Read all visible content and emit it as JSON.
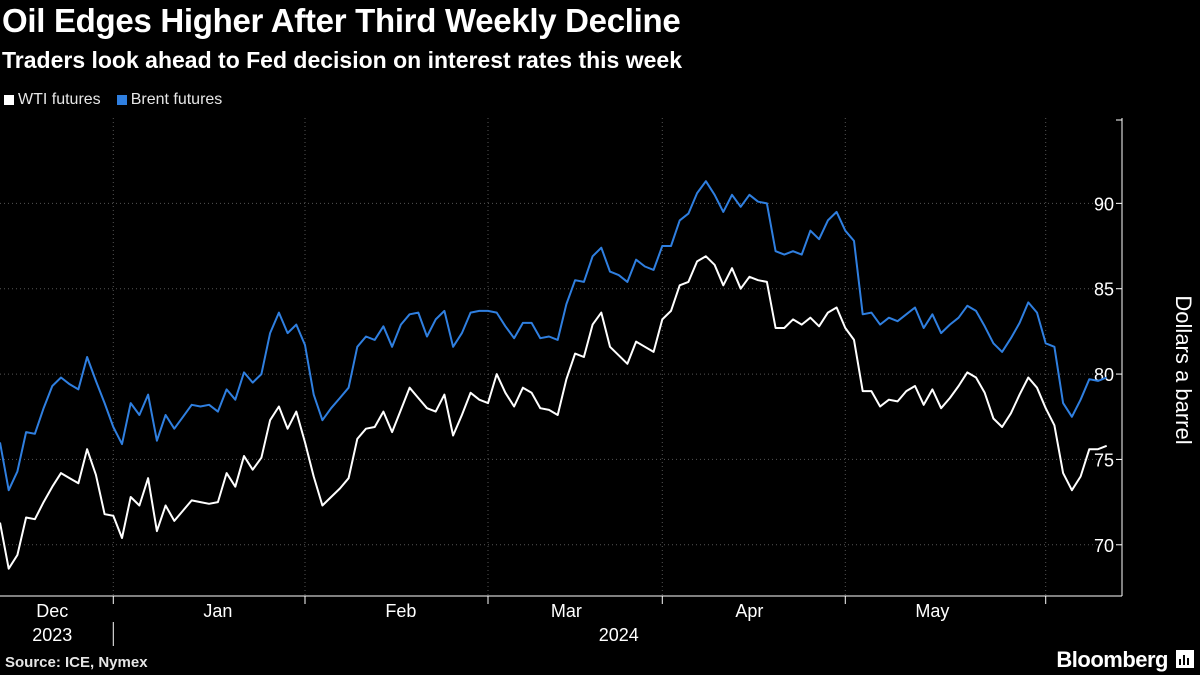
{
  "header": {
    "title": "Oil Edges Higher After Third Weekly Decline",
    "subtitle": "Traders look ahead to Fed decision on interest rates this week"
  },
  "footer": {
    "source": "Source: ICE, Nymex",
    "brand": "Bloomberg"
  },
  "colors": {
    "background": "#000000",
    "wti": "#ffffff",
    "brent": "#2f7fe0",
    "grid": "#555555"
  },
  "chart_data": {
    "type": "line",
    "title": "Oil Edges Higher After Third Weekly Decline",
    "ylabel": "Dollars a barrel",
    "ylim": [
      67,
      95
    ],
    "yticks": [
      70,
      75,
      80,
      85,
      90
    ],
    "grid": true,
    "legend_position": "top-left",
    "x_range": [
      0,
      126
    ],
    "month_ticks": [
      {
        "label": "Dec",
        "pos": 6
      },
      {
        "label": "Jan",
        "pos": 25
      },
      {
        "label": "Feb",
        "pos": 46
      },
      {
        "label": "Mar",
        "pos": 65
      },
      {
        "label": "Apr",
        "pos": 86
      },
      {
        "label": "May",
        "pos": 107
      }
    ],
    "month_boundaries": [
      13,
      35,
      56,
      76,
      97,
      120
    ],
    "year_labels": [
      {
        "label": "2023",
        "pos": 6
      },
      {
        "label": "2024",
        "pos": 71
      }
    ],
    "year_divider": 13,
    "series": [
      {
        "name": "WTI futures",
        "color": "#ffffff",
        "values": [
          71.3,
          68.6,
          69.4,
          71.6,
          71.5,
          72.5,
          73.4,
          74.2,
          73.9,
          73.6,
          75.6,
          74.1,
          71.8,
          71.7,
          70.4,
          72.8,
          72.3,
          73.9,
          70.8,
          72.3,
          71.4,
          72.0,
          72.6,
          72.5,
          72.4,
          72.5,
          74.2,
          73.4,
          75.2,
          74.4,
          75.1,
          77.3,
          78.1,
          76.8,
          77.8,
          76.0,
          74.0,
          72.3,
          72.8,
          73.3,
          73.9,
          76.2,
          76.8,
          76.9,
          77.8,
          76.6,
          77.9,
          79.2,
          78.6,
          78.0,
          77.8,
          78.8,
          76.4,
          77.6,
          78.9,
          78.5,
          78.3,
          80.0,
          78.9,
          78.1,
          79.2,
          78.9,
          78.0,
          77.9,
          77.6,
          79.7,
          81.2,
          81.0,
          82.9,
          83.6,
          81.6,
          81.1,
          80.6,
          81.9,
          81.6,
          81.3,
          83.2,
          83.7,
          85.2,
          85.4,
          86.6,
          86.9,
          86.4,
          85.2,
          86.2,
          85.0,
          85.7,
          85.5,
          85.4,
          82.7,
          82.7,
          83.2,
          82.9,
          83.3,
          82.8,
          83.6,
          83.9,
          82.7,
          82.0,
          79.0,
          79.0,
          78.1,
          78.5,
          78.4,
          79.0,
          79.3,
          78.2,
          79.1,
          78.0,
          78.6,
          79.3,
          80.1,
          79.8,
          78.9,
          77.4,
          76.9,
          77.7,
          78.8,
          79.8,
          79.2,
          78.0,
          77.0,
          74.2,
          73.2,
          74.0,
          75.6,
          75.6,
          75.8
        ]
      },
      {
        "name": "Brent futures",
        "color": "#2f7fe0",
        "values": [
          76.0,
          73.2,
          74.3,
          76.6,
          76.5,
          78.0,
          79.3,
          79.8,
          79.4,
          79.1,
          81.0,
          79.6,
          78.3,
          76.9,
          75.9,
          78.3,
          77.6,
          78.8,
          76.1,
          77.6,
          76.8,
          77.5,
          78.2,
          78.1,
          78.2,
          77.8,
          79.1,
          78.5,
          80.1,
          79.5,
          80.0,
          82.4,
          83.6,
          82.4,
          82.9,
          81.7,
          78.8,
          77.3,
          78.0,
          78.6,
          79.2,
          81.6,
          82.2,
          82.0,
          82.8,
          81.6,
          82.9,
          83.5,
          83.6,
          82.2,
          83.2,
          83.7,
          81.6,
          82.4,
          83.6,
          83.7,
          83.7,
          83.6,
          82.8,
          82.1,
          83.0,
          83.0,
          82.1,
          82.2,
          82.0,
          84.1,
          85.5,
          85.4,
          86.9,
          87.4,
          86.0,
          85.8,
          85.4,
          86.7,
          86.3,
          86.1,
          87.5,
          87.5,
          89.0,
          89.4,
          90.6,
          91.3,
          90.5,
          89.5,
          90.5,
          89.8,
          90.5,
          90.1,
          90.0,
          87.2,
          87.0,
          87.2,
          87.0,
          88.4,
          87.9,
          89.0,
          89.5,
          88.4,
          87.8,
          83.5,
          83.6,
          82.9,
          83.3,
          83.1,
          83.5,
          83.9,
          82.7,
          83.5,
          82.4,
          82.9,
          83.3,
          84.0,
          83.7,
          82.8,
          81.8,
          81.3,
          82.1,
          83.0,
          84.2,
          83.6,
          81.8,
          81.6,
          78.3,
          77.5,
          78.5,
          79.7,
          79.6,
          79.8
        ]
      }
    ]
  }
}
